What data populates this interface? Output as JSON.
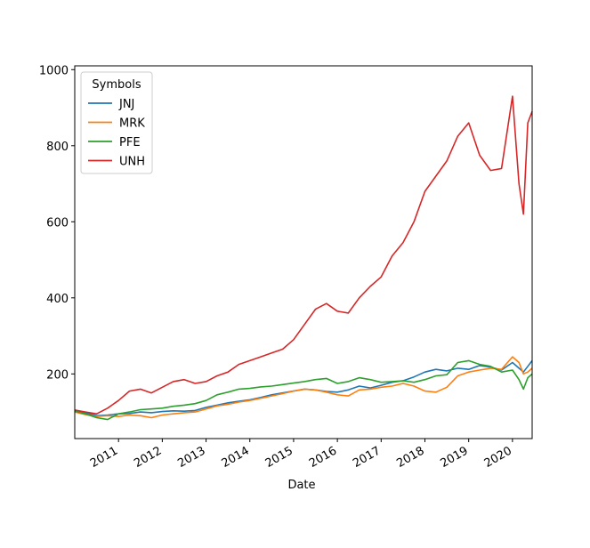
{
  "chart_data": {
    "type": "line",
    "title": "",
    "xlabel": "Date",
    "ylabel": "",
    "xlim": [
      2010.0,
      2020.45
    ],
    "ylim": [
      30,
      1010
    ],
    "x_ticks": [
      2011,
      2012,
      2013,
      2014,
      2015,
      2016,
      2017,
      2018,
      2019,
      2020
    ],
    "x_tick_labels": [
      "2011",
      "2012",
      "2013",
      "2014",
      "2015",
      "2016",
      "2017",
      "2018",
      "2019",
      "2020"
    ],
    "y_ticks": [
      200,
      400,
      600,
      800,
      1000
    ],
    "y_tick_labels": [
      "200",
      "400",
      "600",
      "800",
      "1000"
    ],
    "grid": false,
    "legend": {
      "title": "Symbols",
      "placement": "top-left"
    },
    "x": [
      2010.0,
      2010.25,
      2010.5,
      2010.75,
      2011.0,
      2011.25,
      2011.5,
      2011.75,
      2012.0,
      2012.25,
      2012.5,
      2012.75,
      2013.0,
      2013.25,
      2013.5,
      2013.75,
      2014.0,
      2014.25,
      2014.5,
      2014.75,
      2015.0,
      2015.25,
      2015.5,
      2015.75,
      2016.0,
      2016.25,
      2016.5,
      2016.75,
      2017.0,
      2017.25,
      2017.5,
      2017.75,
      2018.0,
      2018.25,
      2018.5,
      2018.75,
      2019.0,
      2019.25,
      2019.5,
      2019.75,
      2020.0,
      2020.15,
      2020.25,
      2020.35,
      2020.45
    ],
    "series": [
      {
        "name": "JNJ",
        "color": "#1f77b4",
        "values": [
          105,
          98,
          90,
          92,
          95,
          96,
          100,
          98,
          101,
          103,
          102,
          104,
          112,
          118,
          124,
          128,
          132,
          138,
          145,
          150,
          155,
          160,
          158,
          154,
          152,
          158,
          168,
          163,
          170,
          178,
          182,
          192,
          205,
          212,
          208,
          215,
          212,
          222,
          218,
          210,
          230,
          215,
          205,
          220,
          235
        ]
      },
      {
        "name": "MRK",
        "color": "#ff7f0e",
        "values": [
          100,
          93,
          88,
          90,
          88,
          92,
          90,
          85,
          92,
          95,
          98,
          100,
          108,
          116,
          120,
          126,
          130,
          136,
          142,
          148,
          155,
          160,
          158,
          152,
          145,
          142,
          158,
          160,
          165,
          168,
          175,
          168,
          155,
          152,
          165,
          195,
          205,
          210,
          215,
          212,
          245,
          230,
          200,
          205,
          215
        ]
      },
      {
        "name": "PFE",
        "color": "#2ca02c",
        "values": [
          102,
          95,
          85,
          80,
          95,
          100,
          106,
          108,
          110,
          115,
          118,
          122,
          130,
          145,
          152,
          160,
          162,
          166,
          168,
          172,
          176,
          180,
          185,
          188,
          175,
          180,
          190,
          185,
          178,
          180,
          182,
          178,
          185,
          195,
          198,
          230,
          235,
          225,
          220,
          205,
          210,
          185,
          160,
          190,
          200
        ]
      },
      {
        "name": "UNH",
        "color": "#d62728",
        "values": [
          105,
          100,
          95,
          110,
          130,
          155,
          160,
          150,
          165,
          180,
          185,
          175,
          180,
          195,
          205,
          225,
          235,
          245,
          255,
          265,
          290,
          330,
          370,
          385,
          365,
          360,
          400,
          430,
          455,
          510,
          545,
          600,
          680,
          720,
          760,
          825,
          860,
          775,
          735,
          740,
          930,
          700,
          620,
          860,
          890
        ]
      }
    ]
  }
}
